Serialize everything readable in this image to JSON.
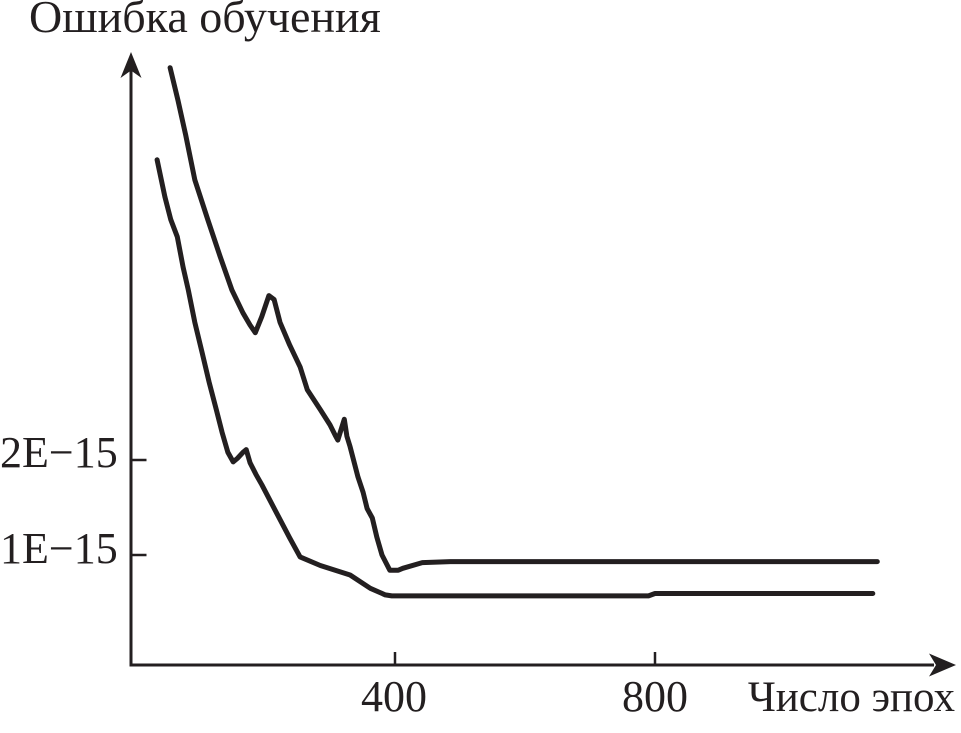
{
  "title": "Ошибка обучения",
  "colors": {
    "ink": "#231f20",
    "background": "#ffffff"
  },
  "chart_data": {
    "type": "line",
    "title": "Ошибка обучения",
    "xlabel": "Число эпох",
    "ylabel": "Ошибка обучения",
    "grid": false,
    "legend": "none",
    "xlim": [
      0,
      1270
    ],
    "ylim": [
      0,
      6.4e-15
    ],
    "x_ticks": [
      {
        "value": 400,
        "label": "400"
      },
      {
        "value": 800,
        "label": "800"
      }
    ],
    "y_ticks": [
      {
        "value": 2e-15,
        "label": "2E−15"
      },
      {
        "value": 1e-15,
        "label": "1E−15"
      }
    ],
    "series": [
      {
        "name": "upper-curve",
        "points": [
          [
            54,
            6.13e-15
          ],
          [
            66,
            5.79e-15
          ],
          [
            78,
            5.42e-15
          ],
          [
            92,
            4.95e-15
          ],
          [
            112,
            4.53e-15
          ],
          [
            131,
            4.14e-15
          ],
          [
            149,
            3.79e-15
          ],
          [
            166,
            3.55e-15
          ],
          [
            177,
            3.42e-15
          ],
          [
            185,
            3.34e-15
          ],
          [
            195,
            3.51e-15
          ],
          [
            206,
            3.73e-15
          ],
          [
            214,
            3.69e-15
          ],
          [
            223,
            3.45e-15
          ],
          [
            238,
            3.21e-15
          ],
          [
            254,
            2.98e-15
          ],
          [
            265,
            2.74e-15
          ],
          [
            285,
            2.53e-15
          ],
          [
            300,
            2.37e-15
          ],
          [
            308,
            2.26e-15
          ],
          [
            312,
            2.21e-15
          ],
          [
            322,
            2.43e-15
          ],
          [
            326,
            2.25e-15
          ],
          [
            331,
            2.14e-15
          ],
          [
            335,
            2.03e-15
          ],
          [
            343,
            1.82e-15
          ],
          [
            351,
            1.66e-15
          ],
          [
            357,
            1.49e-15
          ],
          [
            365,
            1.39e-15
          ],
          [
            372,
            1.19e-15
          ],
          [
            380,
            1e-15
          ],
          [
            386,
            9.2e-16
          ],
          [
            392,
            8.4e-16
          ],
          [
            405,
            8.4e-16
          ],
          [
            412,
            8.6e-16
          ],
          [
            442,
            9.2e-16
          ],
          [
            485,
            9.3e-16
          ],
          [
            1142,
            9.3e-16
          ]
        ]
      },
      {
        "name": "lower-curve",
        "points": [
          [
            34,
            5.16e-15
          ],
          [
            46,
            4.77e-15
          ],
          [
            55,
            4.53e-15
          ],
          [
            65,
            4.35e-15
          ],
          [
            74,
            4.03e-15
          ],
          [
            82,
            3.79e-15
          ],
          [
            92,
            3.45e-15
          ],
          [
            103,
            3.14e-15
          ],
          [
            114,
            2.82e-15
          ],
          [
            125,
            2.53e-15
          ],
          [
            134,
            2.29e-15
          ],
          [
            143,
            2.08e-15
          ],
          [
            151,
            1.98e-15
          ],
          [
            158,
            2.02e-15
          ],
          [
            166,
            2.08e-15
          ],
          [
            171,
            2.11e-15
          ],
          [
            177,
            1.97e-15
          ],
          [
            186,
            1.85e-15
          ],
          [
            195,
            1.74e-15
          ],
          [
            218,
            1.44e-15
          ],
          [
            238,
            1.18e-15
          ],
          [
            254,
            9.8e-16
          ],
          [
            285,
            8.9e-16
          ],
          [
            331,
            7.9e-16
          ],
          [
            362,
            6.5e-16
          ],
          [
            385,
            5.8e-16
          ],
          [
            395,
            5.7e-16
          ],
          [
            790,
            5.7e-16
          ],
          [
            800,
            5.95e-16
          ],
          [
            1135,
            5.95e-16
          ]
        ]
      }
    ]
  }
}
